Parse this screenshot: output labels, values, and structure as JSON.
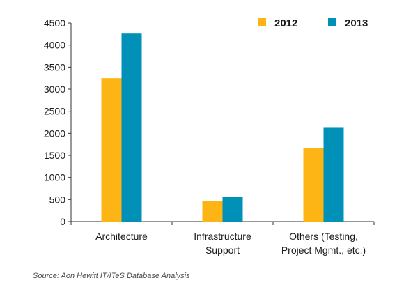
{
  "chart_data": {
    "type": "bar",
    "title": "",
    "xlabel": "",
    "ylabel": "",
    "categories": [
      [
        "Architecture"
      ],
      [
        "Infrastructure",
        "Support"
      ],
      [
        "Others (Testing,",
        "Project Mgmt., etc.)"
      ]
    ],
    "series": [
      {
        "name": "2012",
        "color": "#FDB515",
        "values": [
          3250,
          470,
          1670
        ]
      },
      {
        "name": "2013",
        "color": "#0090B8",
        "values": [
          4260,
          560,
          2140
        ]
      }
    ],
    "ylim": [
      0,
      4500
    ],
    "yticks": [
      0,
      500,
      1000,
      1500,
      2000,
      2500,
      3000,
      3500,
      4000,
      4500
    ],
    "grid": false,
    "legend_position": "top-right"
  },
  "source": "Source: Aon Hewitt IT/ITeS Database Analysis"
}
